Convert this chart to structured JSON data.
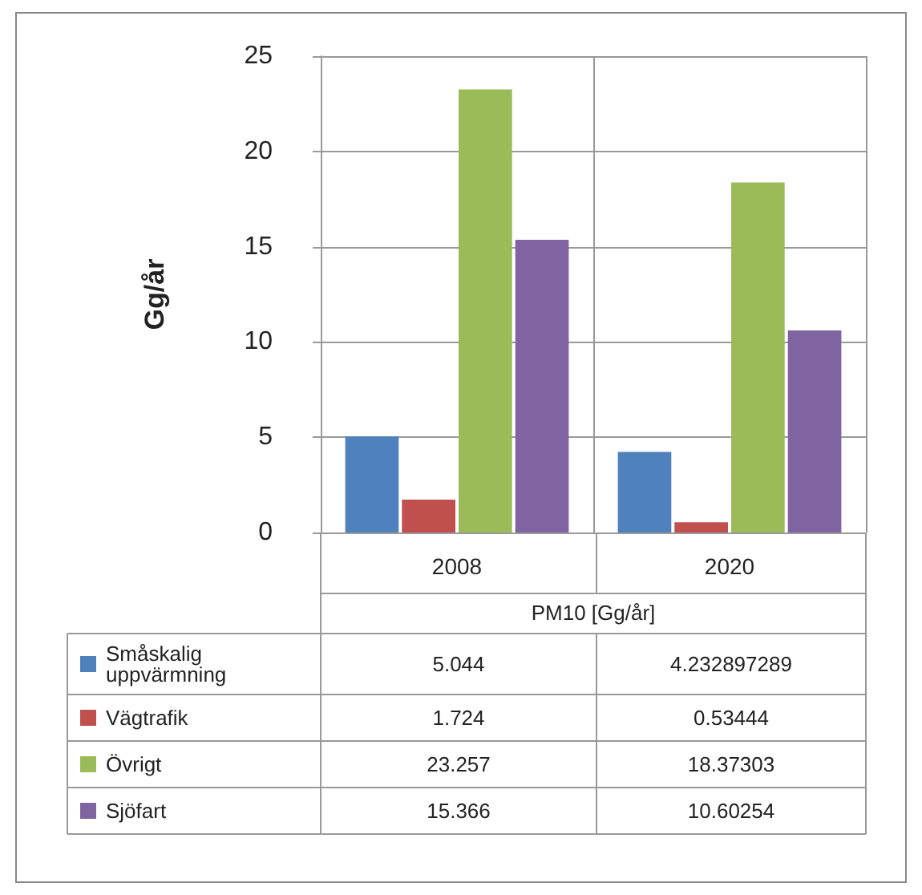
{
  "chart_data": {
    "type": "bar",
    "ylabel": "Gg/år",
    "xlabel": "PM10 [Gg/år]",
    "categories": [
      "2008",
      "2020"
    ],
    "series": [
      {
        "name": "Småskalig uppvärmning",
        "color": "#4f81bd",
        "values": [
          5.044,
          4.232897289
        ]
      },
      {
        "name": "Vägtrafik",
        "color": "#c0504d",
        "values": [
          1.724,
          0.53444
        ]
      },
      {
        "name": "Övrigt",
        "color": "#9bbb59",
        "values": [
          23.257,
          18.37303
        ]
      },
      {
        "name": "Sjöfart",
        "color": "#8064a2",
        "values": [
          15.366,
          10.60254
        ]
      }
    ],
    "ylim": [
      0,
      25
    ],
    "yticks": [
      0,
      5,
      10,
      15,
      20,
      25
    ],
    "grid": true,
    "legend": "bottom",
    "data_labels": true
  }
}
